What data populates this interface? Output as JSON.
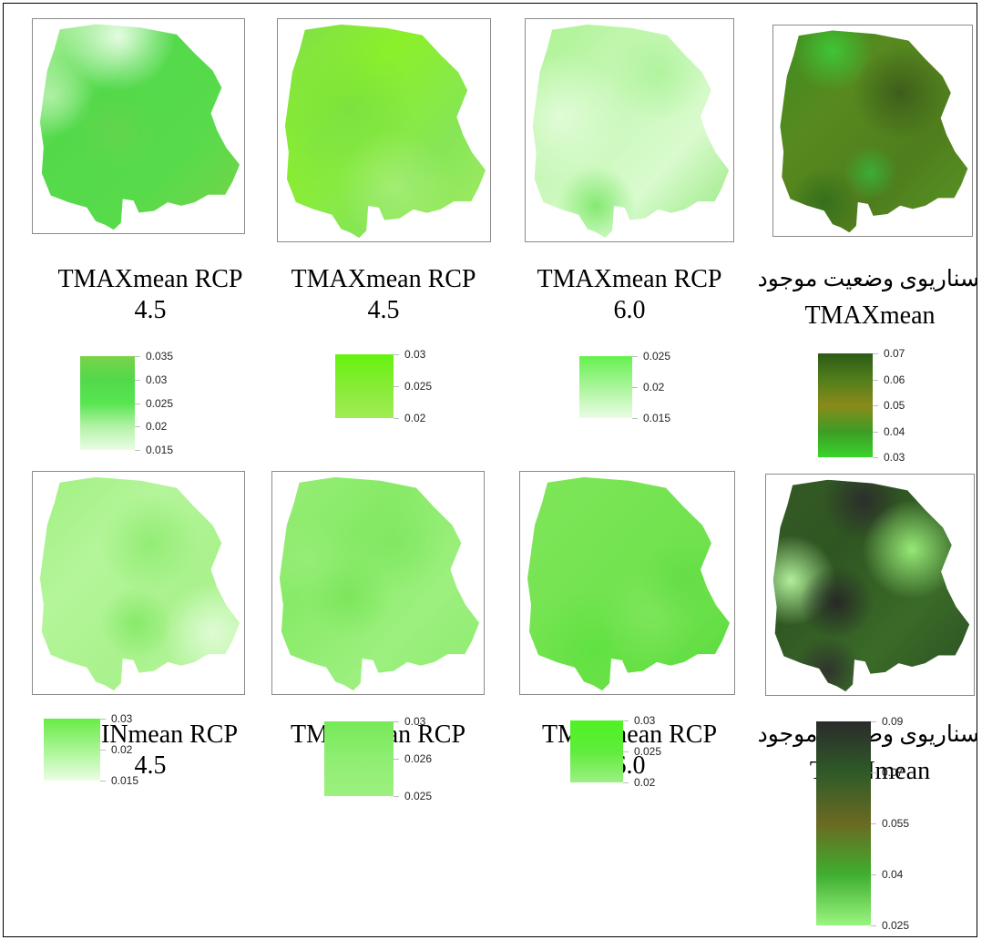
{
  "maps": [
    {
      "id": "p1",
      "title_line1": "TMAXmean RCP",
      "title_line2": "4.5",
      "rtl": false,
      "gradient": [
        "#b9f4a8",
        "#52d94a",
        "#58db4b",
        "#7ad24a"
      ],
      "blobs": [
        [
          "#f1fff0",
          0.9
        ],
        [
          "#c8f5be",
          0.7
        ],
        [
          "#6bd24e",
          0.6
        ]
      ],
      "legend": {
        "labels": [
          "0.035",
          "0.03",
          "0.025",
          "0.02",
          "0.015"
        ],
        "colors": [
          "#7ad24a",
          "#52d94a",
          "#58e550",
          "#b3f2a6",
          "#eafde4"
        ]
      }
    },
    {
      "id": "p2",
      "title_line1": "TMAXmean RCP",
      "title_line2": "4.5",
      "rtl": false,
      "gradient": [
        "#7fdc4d",
        "#8bf02a",
        "#86e655",
        "#a6ec6a"
      ],
      "blobs": [
        [
          "#72d94a",
          0.6
        ],
        [
          "#b6f088",
          0.6
        ],
        [
          "#7be04b",
          0.5
        ]
      ],
      "legend": {
        "labels": [
          "0.03",
          "0.025",
          "0.02"
        ],
        "colors": [
          "#66f20f",
          "#86ec35",
          "#a1ec55"
        ]
      }
    },
    {
      "id": "p3",
      "title_line1": "TMAXmean RCP",
      "title_line2": "6.0",
      "rtl": false,
      "gradient": [
        "#a8f28d",
        "#c4f7b3",
        "#d9fbce",
        "#8ee576"
      ],
      "blobs": [
        [
          "#e7fde0",
          0.8
        ],
        [
          "#9ef08a",
          0.6
        ],
        [
          "#62e24d",
          0.7
        ]
      ],
      "legend": {
        "labels": [
          "0.025",
          "0.02",
          "0.015"
        ],
        "colors": [
          "#66f04f",
          "#a9f59a",
          "#eafde6"
        ]
      }
    },
    {
      "id": "p4",
      "title_line1": "سناریوی وضعیت موجود",
      "title_line2": "TMAXmean",
      "rtl": true,
      "gradient": [
        "#3e8e1f",
        "#57891f",
        "#4f7d1d",
        "#5a9a26"
      ],
      "blobs": [
        [
          "#3dcf39",
          0.85
        ],
        [
          "#3b5a1a",
          0.9
        ],
        [
          "#35b83a",
          0.8
        ],
        [
          "#2e6a1b",
          0.8
        ]
      ],
      "legend": {
        "labels": [
          "0.07",
          "0.06",
          "0.05",
          "0.04",
          "0.03"
        ],
        "colors": [
          "#2c5a14",
          "#517e1b",
          "#8a8a1a",
          "#3e9c24",
          "#38d42b"
        ]
      }
    },
    {
      "id": "p5",
      "title_line1": "TMINmean RCP",
      "title_line2": "4.5",
      "rtl": false,
      "gradient": [
        "#9ff07f",
        "#b4f59a",
        "#a9f28c",
        "#c9f8b8"
      ],
      "blobs": [
        [
          "#7fe85f",
          0.6
        ],
        [
          "#6fe44f",
          0.6
        ],
        [
          "#e9fde2",
          0.8
        ]
      ],
      "legend": {
        "labels": [
          "0.03",
          "0.02",
          "0.015"
        ],
        "colors": [
          "#67ec45",
          "#a8f593",
          "#eafde4"
        ]
      }
    },
    {
      "id": "p6",
      "title_line1": "TMINmean RCP",
      "title_line2": "4.5",
      "rtl": false,
      "gradient": [
        "#98ee78",
        "#87ea66",
        "#9df07f",
        "#8ceb6d"
      ],
      "blobs": [
        [
          "#78e559",
          0.6
        ],
        [
          "#70e24f",
          0.6
        ],
        [
          "#a2f086",
          0.5
        ]
      ],
      "legend": {
        "labels": [
          "0.03",
          "0.026",
          "0.025"
        ],
        "colors": [
          "#76e958",
          "#8fee72",
          "#9cf07f"
        ]
      }
    },
    {
      "id": "p7",
      "title_line1": "TMINmean RCP",
      "title_line2": "6.0",
      "rtl": false,
      "gradient": [
        "#7fe65a",
        "#77e453",
        "#6ee14b",
        "#57dc3d"
      ],
      "blobs": [
        [
          "#57e23a",
          0.6
        ],
        [
          "#8be86b",
          0.5
        ],
        [
          "#5ddc43",
          0.6
        ]
      ],
      "legend": {
        "labels": [
          "0.03",
          "0.025",
          "0.02"
        ],
        "colors": [
          "#4ef224",
          "#60ec3c",
          "#9bf083"
        ]
      }
    },
    {
      "id": "p8",
      "title_line1": "سناریوی وضعیت موجود",
      "title_line2": "TMINmean",
      "rtl": true,
      "gradient": [
        "#355a25",
        "#2f5522",
        "#3a6a28",
        "#2b4e23"
      ],
      "blobs": [
        [
          "#2c2c2c",
          0.95
        ],
        [
          "#b7f7a0",
          0.95
        ],
        [
          "#9cf07b",
          0.95
        ],
        [
          "#262626",
          0.95
        ],
        [
          "#2e2e2e",
          0.9
        ]
      ],
      "legend": {
        "labels": [
          "0.09",
          "0.07",
          "0.055",
          "0.04",
          "0.025"
        ],
        "colors": [
          "#2b2b2b",
          "#2f5a28",
          "#6a6a22",
          "#3fae2f",
          "#9af580"
        ]
      }
    }
  ]
}
